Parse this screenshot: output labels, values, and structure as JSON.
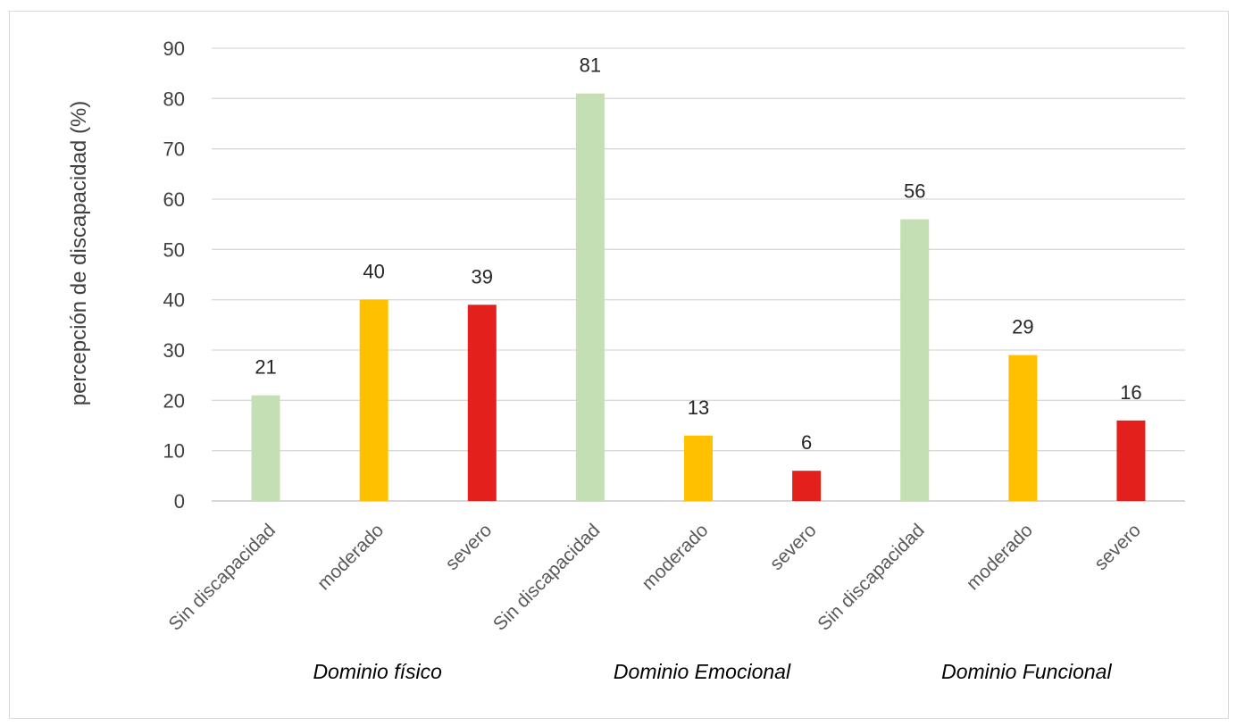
{
  "chart_data": {
    "type": "bar",
    "ylabel": "percepción de discapacidad (%)",
    "xlabel": "",
    "title": "",
    "ylim": [
      0,
      90
    ],
    "yticks": [
      0,
      10,
      20,
      30,
      40,
      50,
      60,
      70,
      80,
      90
    ],
    "grid": true,
    "legend": "none",
    "groups": [
      {
        "name": "Dominio físico",
        "categories": [
          "Sin discapacidad",
          "moderado",
          "severo"
        ],
        "values": [
          21,
          40,
          39
        ]
      },
      {
        "name": "Dominio Emocional",
        "categories": [
          "Sin discapacidad",
          "moderado",
          "severo"
        ],
        "values": [
          81,
          13,
          6
        ]
      },
      {
        "name": "Dominio Funcional",
        "categories": [
          "Sin discapacidad",
          "moderado",
          "severo"
        ],
        "values": [
          56,
          29,
          16
        ]
      }
    ],
    "category_colors": {
      "Sin discapacidad": "#c5dfb4",
      "moderado": "#ffc000",
      "severo": "#e3201b"
    }
  }
}
